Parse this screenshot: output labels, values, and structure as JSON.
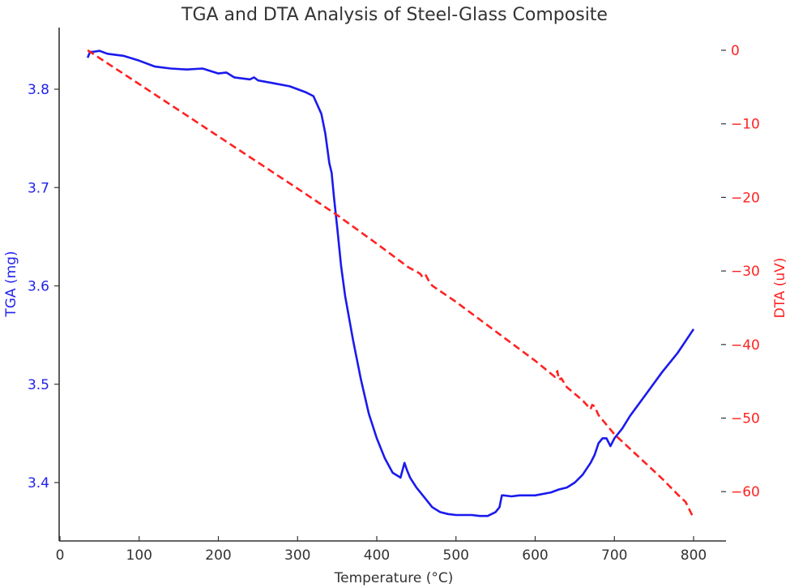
{
  "chart_data": {
    "type": "line",
    "title": "TGA and DTA Analysis of Steel-Glass Composite",
    "xlabel": "Temperature (°C)",
    "ylabel": "TGA (mg)",
    "y2label": "DTA (uV)",
    "xlim": [
      0,
      840
    ],
    "ylim": [
      3.345,
      3.865
    ],
    "y2lim": [
      -66,
      2.5
    ],
    "xticks": [
      0,
      100,
      200,
      300,
      400,
      500,
      600,
      700,
      800
    ],
    "yticks": [
      3.4,
      3.5,
      3.6,
      3.7,
      3.8
    ],
    "y2ticks": [
      0,
      -10,
      -20,
      -30,
      -40,
      -50,
      -60
    ],
    "grid": false,
    "legend": null,
    "series": [
      {
        "name": "TGA",
        "axis": "left",
        "color": "#1a1aee",
        "style": "solid",
        "x": [
          35,
          38,
          42,
          50,
          60,
          80,
          100,
          120,
          140,
          160,
          180,
          200,
          210,
          220,
          240,
          245,
          250,
          270,
          290,
          300,
          310,
          320,
          330,
          335,
          340,
          343,
          346,
          350,
          355,
          360,
          370,
          380,
          390,
          400,
          410,
          420,
          430,
          435,
          438,
          442,
          446,
          450,
          460,
          470,
          480,
          490,
          500,
          510,
          520,
          530,
          540,
          550,
          555,
          558,
          560,
          570,
          580,
          600,
          620,
          630,
          640,
          650,
          660,
          670,
          675,
          680,
          685,
          690,
          695,
          700,
          710,
          720,
          740,
          760,
          780,
          800
        ],
        "values": [
          3.832,
          3.838,
          3.838,
          3.839,
          3.836,
          3.834,
          3.829,
          3.823,
          3.821,
          3.82,
          3.821,
          3.816,
          3.817,
          3.812,
          3.81,
          3.812,
          3.809,
          3.806,
          3.803,
          3.8,
          3.797,
          3.793,
          3.775,
          3.755,
          3.725,
          3.715,
          3.69,
          3.66,
          3.62,
          3.59,
          3.545,
          3.505,
          3.47,
          3.445,
          3.425,
          3.41,
          3.405,
          3.42,
          3.413,
          3.405,
          3.4,
          3.395,
          3.385,
          3.375,
          3.37,
          3.368,
          3.367,
          3.367,
          3.367,
          3.366,
          3.366,
          3.37,
          3.375,
          3.387,
          3.387,
          3.386,
          3.387,
          3.387,
          3.39,
          3.393,
          3.395,
          3.4,
          3.408,
          3.42,
          3.428,
          3.44,
          3.445,
          3.445,
          3.437,
          3.445,
          3.455,
          3.468,
          3.49,
          3.512,
          3.532,
          3.556
        ]
      },
      {
        "name": "DTA",
        "axis": "right",
        "color": "#ff2222",
        "style": "dashed",
        "x": [
          35,
          100,
          200,
          300,
          350,
          400,
          440,
          452,
          455,
          458,
          462,
          465,
          470,
          500,
          550,
          600,
          625,
          628,
          630,
          633,
          640,
          660,
          670,
          672,
          675,
          680,
          700,
          720,
          740,
          760,
          780,
          790,
          795,
          800
        ],
        "values": [
          0,
          -4.6,
          -11.7,
          -18.8,
          -22.4,
          -26.3,
          -29.5,
          -30.2,
          -30.4,
          -30.9,
          -30.6,
          -31.2,
          -32,
          -34.2,
          -38.2,
          -42.2,
          -44.4,
          -43.6,
          -44.8,
          -44.6,
          -45.8,
          -47.6,
          -48.8,
          -48.2,
          -48.4,
          -49.6,
          -52.2,
          -54.2,
          -56.2,
          -58.2,
          -60.4,
          -61.4,
          -62.5,
          -63.6
        ]
      }
    ],
    "annotations": []
  }
}
